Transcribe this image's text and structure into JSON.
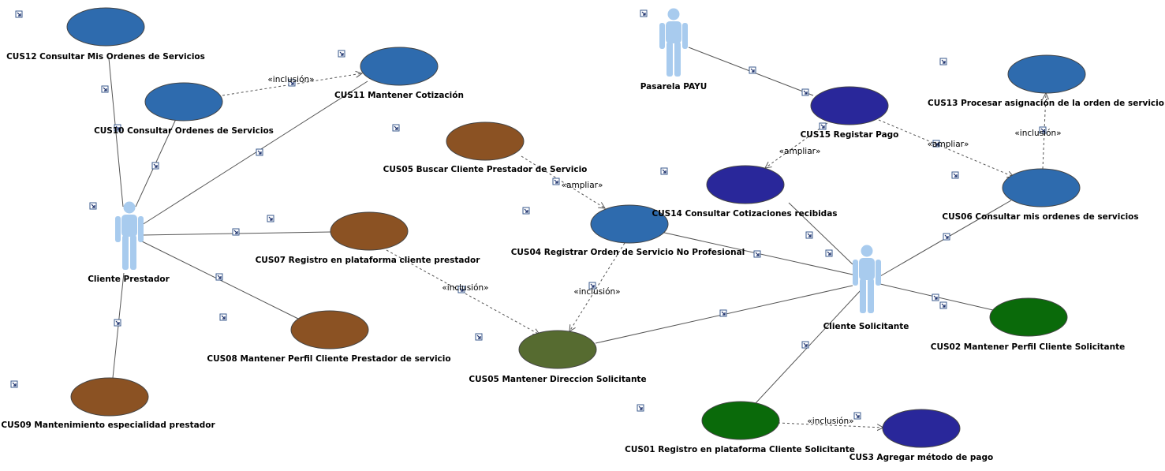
{
  "colors": {
    "blue": "#2E6BAE",
    "navy": "#29279A",
    "brown": "#8B5223",
    "green": "#0A6A0A",
    "olive": "#566B30",
    "actor": "#A8CBEE"
  },
  "actors": [
    {
      "id": "cliente_prestador",
      "label": "Cliente Prestador"
    },
    {
      "id": "pasarela_payu",
      "label": "Pasarela PAYU"
    },
    {
      "id": "cliente_solicitante",
      "label": "Cliente Solicitante"
    }
  ],
  "use_cases": [
    {
      "id": "cus12",
      "label": "CUS12 Consultar Mis Ordenes de Servicios",
      "color": "blue"
    },
    {
      "id": "cus11",
      "label": "CUS11 Mantener Cotización",
      "color": "blue"
    },
    {
      "id": "cus10",
      "label": "CUS10 Consultar Ordenes de Servicios",
      "color": "blue"
    },
    {
      "id": "cus05b",
      "label": "CUS05 Buscar Cliente Prestador de Servicio",
      "color": "brown"
    },
    {
      "id": "cus07",
      "label": "CUS07 Registro en plataforma cliente prestador",
      "color": "brown"
    },
    {
      "id": "cus08",
      "label": "CUS08 Mantener Perfil Cliente Prestador de servicio",
      "color": "brown"
    },
    {
      "id": "cus09",
      "label": "CUS09 Mantenimiento especialidad prestador",
      "color": "brown"
    },
    {
      "id": "cus04",
      "label": "CUS04 Registrar Orden de Servicio No Profesional",
      "color": "blue"
    },
    {
      "id": "cus05m",
      "label": "CUS05 Mantener Direccion Solicitante",
      "color": "olive"
    },
    {
      "id": "cus15",
      "label": "CUS15 Registar Pago",
      "color": "navy"
    },
    {
      "id": "cus14",
      "label": "CUS14 Consultar Cotizaciones recibidas",
      "color": "navy"
    },
    {
      "id": "cus13",
      "label": "CUS13 Procesar asignación de la orden de servicio",
      "color": "blue"
    },
    {
      "id": "cus06",
      "label": "CUS06 Consultar mis ordenes de servicios",
      "color": "blue"
    },
    {
      "id": "cus02",
      "label": "CUS02 Mantener Perfil Cliente Solicitante",
      "color": "green"
    },
    {
      "id": "cus01",
      "label": "CUS01 Registro en plataforma Cliente Solicitante",
      "color": "green"
    },
    {
      "id": "cus3",
      "label": "CUS3 Agregar método de pago",
      "color": "navy"
    }
  ],
  "relations": [
    {
      "from": "cliente_prestador",
      "to": "cus12",
      "type": "association"
    },
    {
      "from": "cliente_prestador",
      "to": "cus10",
      "type": "association"
    },
    {
      "from": "cliente_prestador",
      "to": "cus11",
      "type": "association"
    },
    {
      "from": "cliente_prestador",
      "to": "cus07",
      "type": "association"
    },
    {
      "from": "cliente_prestador",
      "to": "cus08",
      "type": "association"
    },
    {
      "from": "cliente_prestador",
      "to": "cus09",
      "type": "association"
    },
    {
      "from": "cus10",
      "to": "cus11",
      "type": "dependency",
      "stereotype": "«inclusión»"
    },
    {
      "from": "cus05b",
      "to": "cus04",
      "type": "dependency",
      "stereotype": "«ampliar»"
    },
    {
      "from": "cus07",
      "to": "cus05m",
      "type": "dependency",
      "stereotype": "«inclusión»"
    },
    {
      "from": "cus04",
      "to": "cus05m",
      "type": "dependency",
      "stereotype": "«inclusión»"
    },
    {
      "from": "pasarela_payu",
      "to": "cus15",
      "type": "association"
    },
    {
      "from": "cus15",
      "to": "cus14",
      "type": "dependency",
      "stereotype": "«ampliar»"
    },
    {
      "from": "cus15",
      "to": "cus06",
      "type": "dependency",
      "stereotype": "«ampliar»"
    },
    {
      "from": "cus06",
      "to": "cus13",
      "type": "dependency",
      "stereotype": "«inclusión»"
    },
    {
      "from": "cliente_solicitante",
      "to": "cus14",
      "type": "association"
    },
    {
      "from": "cliente_solicitante",
      "to": "cus04",
      "type": "association"
    },
    {
      "from": "cliente_solicitante",
      "to": "cus05m",
      "type": "association"
    },
    {
      "from": "cliente_solicitante",
      "to": "cus06",
      "type": "association"
    },
    {
      "from": "cliente_solicitante",
      "to": "cus02",
      "type": "association"
    },
    {
      "from": "cliente_solicitante",
      "to": "cus01",
      "type": "association"
    },
    {
      "from": "cus01",
      "to": "cus3",
      "type": "dependency",
      "stereotype": "«inclusión»"
    }
  ]
}
